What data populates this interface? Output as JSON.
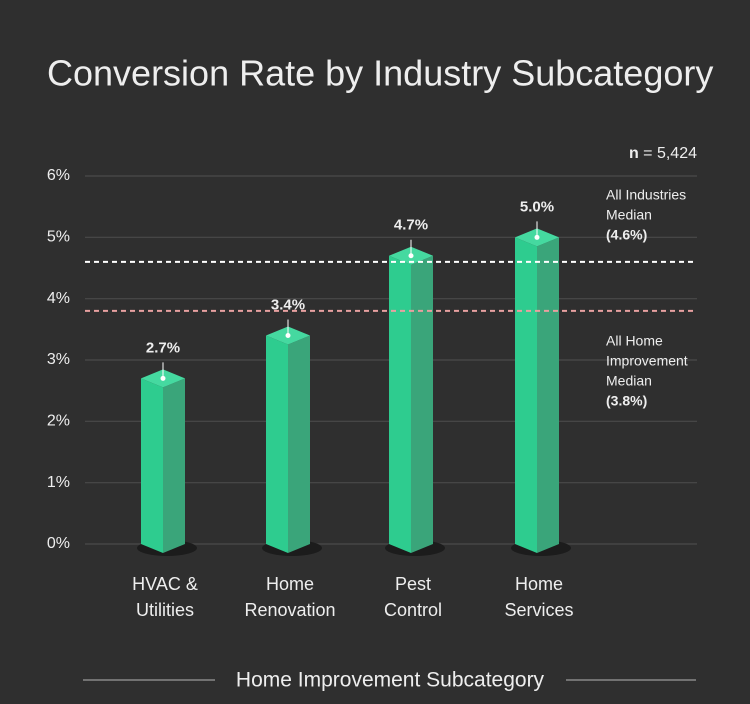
{
  "chart_data": {
    "type": "bar",
    "title": "Conversion Rate by Industry Subcategory",
    "x_label": "Home Improvement Subcategory",
    "note": [
      "n",
      "= 5,424"
    ],
    "categories": [
      [
        "HVAC &",
        "Utilities"
      ],
      [
        "Home",
        "Renovation"
      ],
      [
        "Pest",
        "Control"
      ],
      [
        "Home",
        "Services"
      ]
    ],
    "values": [
      2.7,
      3.4,
      4.7,
      5.0
    ],
    "value_labels": [
      "2.7%",
      "3.4%",
      "4.7%",
      "5.0%"
    ],
    "color": "#2ecc8f",
    "side_color": "#3aa57a",
    "ylim": [
      0,
      6
    ],
    "yticks": [
      {
        "value": 0,
        "label": "0%"
      },
      {
        "value": 1,
        "label": "1%"
      },
      {
        "value": 2,
        "label": "2%"
      },
      {
        "value": 3,
        "label": "3%"
      },
      {
        "value": 4,
        "label": "4%"
      },
      {
        "value": 5,
        "label": "5%"
      },
      {
        "value": 6,
        "label": "6%"
      }
    ],
    "grid": true,
    "reference_lines": [
      {
        "value": 4.6,
        "label": [
          "All Industries",
          "Median"
        ],
        "value_label": "(4.6%)",
        "color": "#ffffff",
        "label_side": "above"
      },
      {
        "value": 3.8,
        "label": [
          "All Home",
          "Improvement",
          "Median"
        ],
        "value_label": "(3.8%)",
        "color": "#e8a0a0",
        "label_side": "below"
      }
    ]
  }
}
